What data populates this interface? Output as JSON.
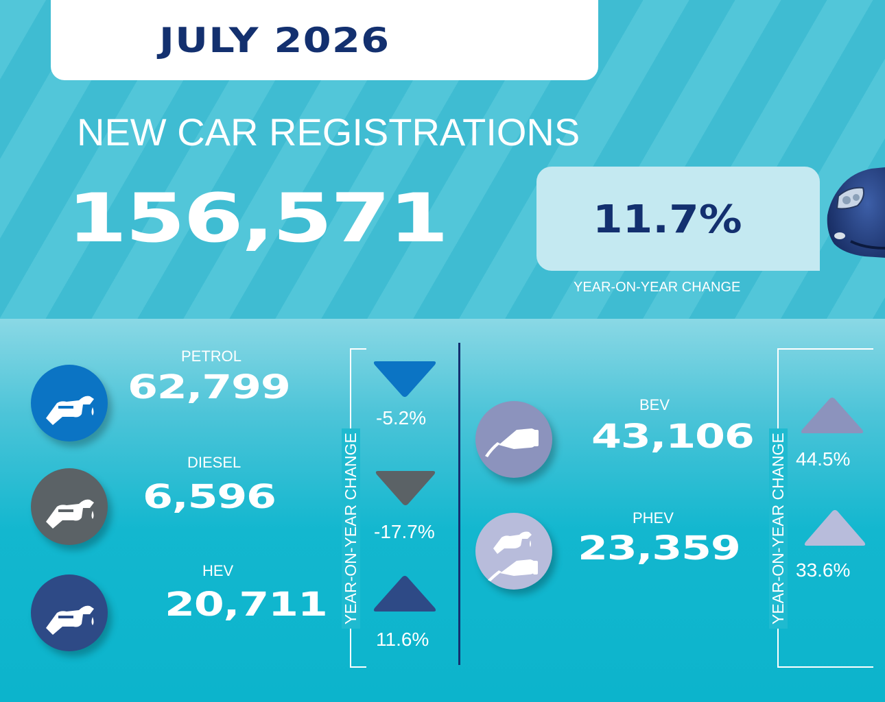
{
  "header": {
    "month": "JULY 2026",
    "title": "NEW CAR REGISTRATIONS",
    "total": "156,571",
    "yoy_change": "11.7%",
    "yoy_label": "YEAR-ON-YEAR CHANGE"
  },
  "fuel_types": [
    {
      "label": "PETROL",
      "count": "62,799",
      "change": "-5.2%",
      "direction": "down",
      "color": "#0b74c4",
      "icon": "fuel-pump-nozzle-icon"
    },
    {
      "label": "DIESEL",
      "count": "6,596",
      "change": "-17.7%",
      "direction": "down",
      "color": "#5b6266",
      "icon": "fuel-pump-nozzle-icon"
    },
    {
      "label": "HEV",
      "count": "20,711",
      "change": "11.6%",
      "direction": "up",
      "color": "#2e4a86",
      "icon": "fuel-pump-nozzle-icon"
    },
    {
      "label": "BEV",
      "count": "43,106",
      "change": "44.5%",
      "direction": "up",
      "color": "#8c93bd",
      "icon": "ev-charging-plug-icon"
    },
    {
      "label": "PHEV",
      "count": "23,359",
      "change": "33.6%",
      "direction": "up",
      "color": "#b8bcdb",
      "icon": "hybrid-plug-nozzle-icon"
    }
  ],
  "side_labels": {
    "left": "YEAR-ON-YEAR CHANGE",
    "right": "YEAR-ON-YEAR CHANGE"
  },
  "colors": {
    "navy": "#13306f",
    "stripe_light": "#52c6d9",
    "stripe_dark": "#3fbcd2"
  }
}
